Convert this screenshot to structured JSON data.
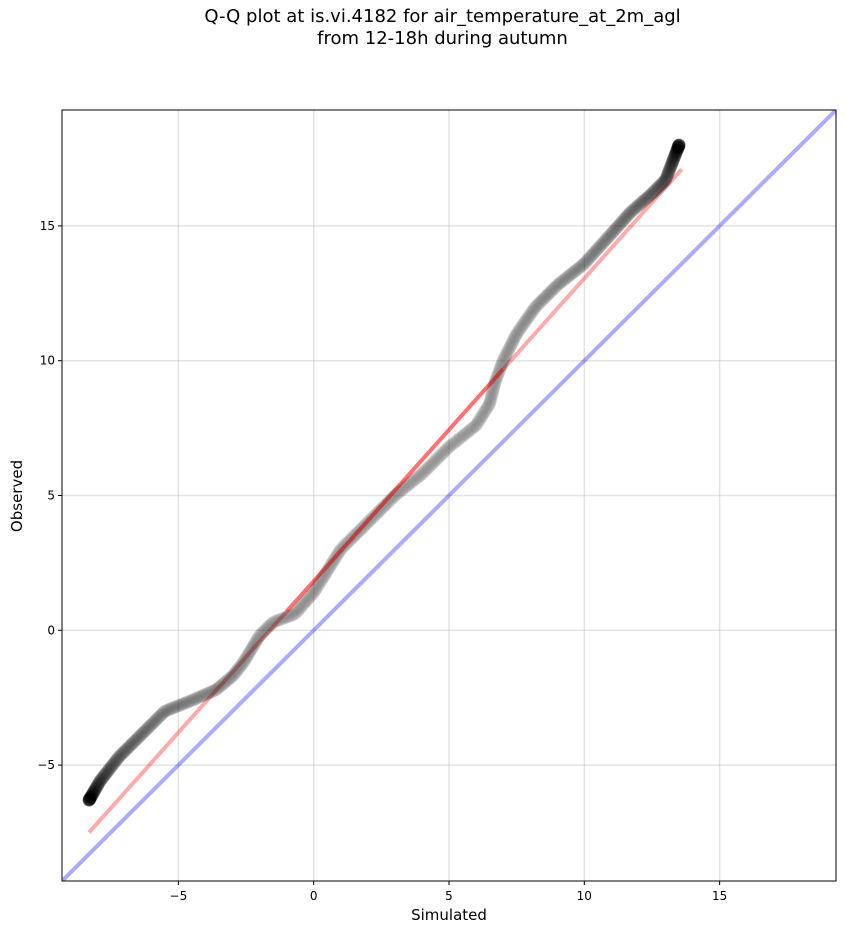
{
  "title": {
    "line1": "Q-Q plot at is.vi.4182 for air_temperature_at_2m_agl",
    "line2": "from 12-18h during autumn"
  },
  "colors": {
    "points": "#000000",
    "fit_line": "#ff0000",
    "identity_line": "#0000ff",
    "grid": "#b0b0b0"
  },
  "chart_data": {
    "type": "scatter",
    "xlabel": "Simulated",
    "ylabel": "Observed",
    "xlim": [
      -9.3,
      19.3
    ],
    "ylim": [
      -9.3,
      19.3
    ],
    "xticks": [
      -5,
      0,
      5,
      10,
      15
    ],
    "yticks": [
      -5,
      0,
      5,
      10,
      15
    ],
    "xtick_labels": [
      "−5",
      "0",
      "5",
      "10",
      "15"
    ],
    "ytick_labels": [
      "−5",
      "0",
      "5",
      "10",
      "15"
    ],
    "grid": true,
    "reference_lines": [
      {
        "kind": "identity",
        "x": [
          -9.3,
          19.3
        ],
        "y": [
          -9.3,
          19.3
        ],
        "color": "#0000ff"
      },
      {
        "kind": "fit",
        "x": [
          -8.3,
          13.6
        ],
        "y": [
          -7.5,
          17.1
        ],
        "color": "#ff0000"
      }
    ],
    "series": [
      {
        "quantile_curve": [
          [
            -8.3,
            -6.3
          ],
          [
            -7.9,
            -5.6
          ],
          [
            -7.2,
            -4.7
          ],
          [
            -6.2,
            -3.7
          ],
          [
            -5.5,
            -3.0
          ],
          [
            -4.5,
            -2.6
          ],
          [
            -3.6,
            -2.2
          ],
          [
            -3.0,
            -1.7
          ],
          [
            -2.6,
            -1.2
          ],
          [
            -2.0,
            -0.2
          ],
          [
            -1.5,
            0.3
          ],
          [
            -0.7,
            0.6
          ],
          [
            0.0,
            1.4
          ],
          [
            1.0,
            3.0
          ],
          [
            2.0,
            4.0
          ],
          [
            3.0,
            5.0
          ],
          [
            4.0,
            5.8
          ],
          [
            5.0,
            6.8
          ],
          [
            6.0,
            7.6
          ],
          [
            6.5,
            8.4
          ],
          [
            6.7,
            9.2
          ],
          [
            7.0,
            10.0
          ],
          [
            7.5,
            11.0
          ],
          [
            8.2,
            12.0
          ],
          [
            9.0,
            12.8
          ],
          [
            10.0,
            13.6
          ],
          [
            10.9,
            14.6
          ],
          [
            11.7,
            15.5
          ],
          [
            12.5,
            16.2
          ],
          [
            13.0,
            16.7
          ],
          [
            13.5,
            18.0
          ]
        ],
        "n_points": 700
      }
    ]
  }
}
